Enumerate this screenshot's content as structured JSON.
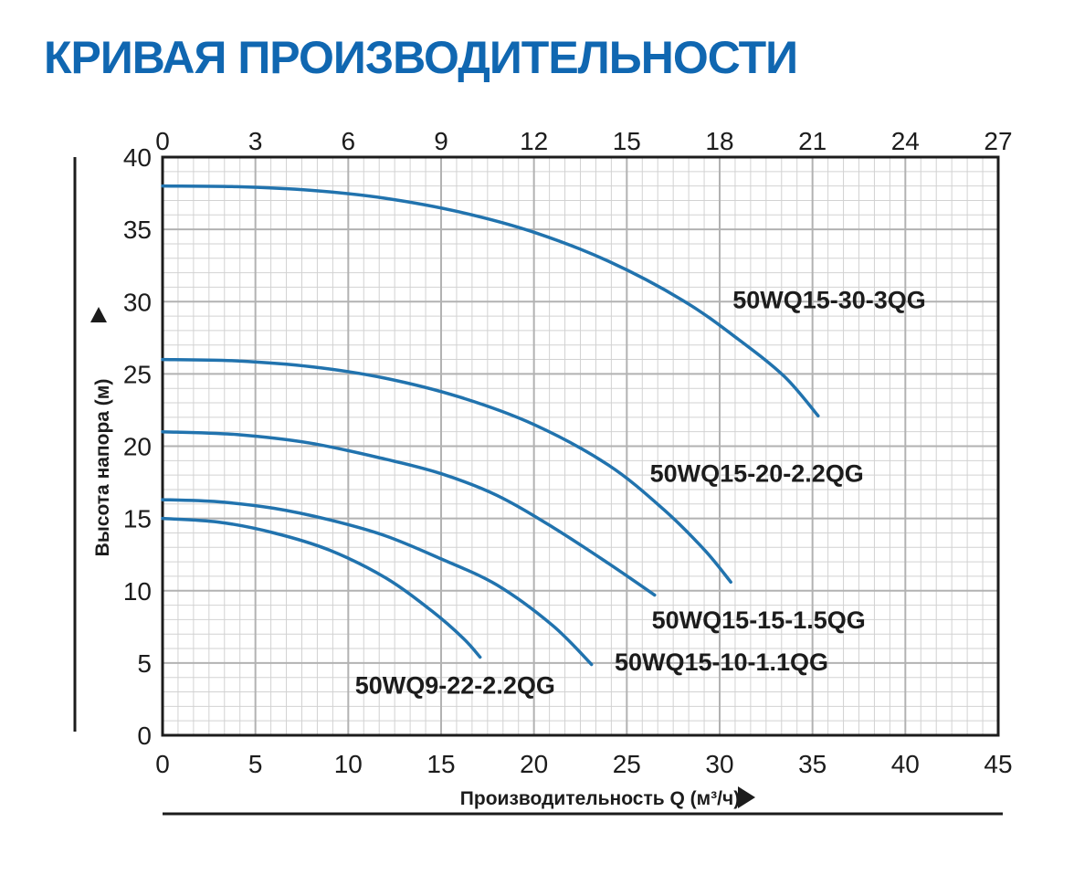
{
  "title": "КРИВАЯ ПРОИЗВОДИТЕЛЬНОСТИ",
  "colors": {
    "title": "#1067b1",
    "text": "#1c1c1c",
    "curve": "#2173ae",
    "grid_minor": "#d2d2d2",
    "grid_major": "#b2b2b2",
    "axis": "#1c1c1c"
  },
  "chart_data": {
    "type": "line",
    "title": "КРИВАЯ ПРОИЗВОДИТЕЛЬНОСТИ",
    "xlabel": "Производительность Q (м³/ч)",
    "ylabel": "Высота напора (м)",
    "x_axis_bottom": {
      "ticks": [
        0,
        5,
        10,
        15,
        20,
        25,
        30,
        35,
        40,
        45
      ],
      "range": [
        0,
        45
      ]
    },
    "x_axis_top": {
      "ticks": [
        0,
        3,
        6,
        9,
        12,
        15,
        18,
        21,
        24,
        27
      ],
      "range": [
        0,
        27
      ]
    },
    "y_axis": {
      "ticks": [
        40,
        35,
        30,
        25,
        20,
        15,
        10,
        5,
        0
      ],
      "range": [
        0,
        40
      ]
    },
    "grid": "minor and major gridlines on",
    "legend_position": "labels next to curves",
    "series": [
      {
        "name": "50WQ15-30-3QG",
        "points": [
          [
            0,
            38.0
          ],
          [
            4,
            37.95
          ],
          [
            8,
            37.7
          ],
          [
            12,
            37.15
          ],
          [
            16,
            36.2
          ],
          [
            20,
            34.8
          ],
          [
            24,
            32.8
          ],
          [
            28,
            30.1
          ],
          [
            31,
            27.4
          ],
          [
            33.5,
            24.8
          ],
          [
            35.3,
            22.1
          ]
        ],
        "label_pos": [
          35.9,
          30.1
        ]
      },
      {
        "name": "50WQ15-20-2.2QG",
        "points": [
          [
            0,
            26.0
          ],
          [
            4,
            25.9
          ],
          [
            8,
            25.5
          ],
          [
            12,
            24.7
          ],
          [
            16,
            23.4
          ],
          [
            20,
            21.5
          ],
          [
            24,
            18.7
          ],
          [
            27,
            15.6
          ],
          [
            29.2,
            12.8
          ],
          [
            30.6,
            10.6
          ]
        ],
        "label_pos": [
          32.0,
          18.1
        ]
      },
      {
        "name": "50WQ15-15-1.5QG",
        "points": [
          [
            0,
            21.0
          ],
          [
            4,
            20.8
          ],
          [
            8,
            20.2
          ],
          [
            12,
            19.1
          ],
          [
            15,
            18.1
          ],
          [
            18,
            16.6
          ],
          [
            21,
            14.4
          ],
          [
            24,
            11.9
          ],
          [
            26.5,
            9.7
          ]
        ],
        "label_pos": [
          32.1,
          7.95
        ]
      },
      {
        "name": "50WQ15-10-1.1QG",
        "points": [
          [
            0,
            16.3
          ],
          [
            3,
            16.15
          ],
          [
            6,
            15.7
          ],
          [
            9,
            14.9
          ],
          [
            12,
            13.8
          ],
          [
            15,
            12.2
          ],
          [
            18,
            10.4
          ],
          [
            21,
            7.6
          ],
          [
            23.1,
            4.9
          ]
        ],
        "label_pos": [
          30.1,
          5.05
        ]
      },
      {
        "name": "50WQ9-22-2.2QG",
        "points": [
          [
            0,
            15.0
          ],
          [
            3,
            14.75
          ],
          [
            6,
            14.0
          ],
          [
            9,
            12.8
          ],
          [
            12,
            10.9
          ],
          [
            14.5,
            8.6
          ],
          [
            16.2,
            6.7
          ],
          [
            17.1,
            5.4
          ]
        ],
        "label_pos": [
          15.75,
          3.45
        ]
      }
    ]
  }
}
